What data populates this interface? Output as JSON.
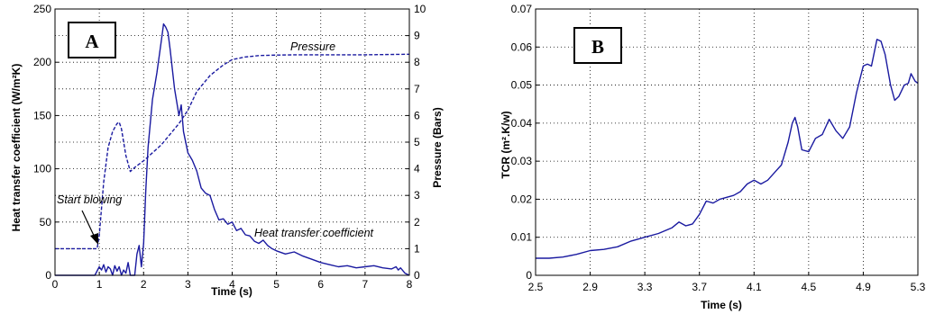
{
  "colors": {
    "series": "#1a1aa0",
    "grid": "#000000",
    "axis": "#000000",
    "background": "#ffffff"
  },
  "chart_data": [
    {
      "id": "A",
      "type": "line",
      "panel_label": "A",
      "xlabel": "Time (s)",
      "ylabel": "Heat transfer coefficient (W/m²K)",
      "ylabel_right": "Pressure (Bars)",
      "xlim": [
        0,
        8
      ],
      "ylim": [
        0,
        250
      ],
      "ylim_right": [
        0,
        10
      ],
      "x_ticks": [
        "0",
        "1",
        "2",
        "3",
        "4",
        "5",
        "6",
        "7",
        "8"
      ],
      "y_ticks": [
        "0",
        "50",
        "100",
        "150",
        "200",
        "250"
      ],
      "y_ticks_right": [
        "0",
        "1",
        "2",
        "3",
        "4",
        "5",
        "6",
        "7",
        "8",
        "9",
        "10"
      ],
      "grid": true,
      "annotations": [
        "Pressure",
        "Heat transfer coefficient",
        "Start blowing"
      ],
      "series": [
        {
          "name": "Pressure",
          "axis": "right",
          "style": "dashed",
          "x": [
            0,
            0.95,
            1.0,
            1.1,
            1.2,
            1.3,
            1.4,
            1.45,
            1.5,
            1.6,
            1.7,
            1.8,
            2.0,
            2.4,
            2.8,
            3.0,
            3.2,
            3.5,
            3.8,
            4.0,
            4.3,
            4.6,
            5.0,
            5.5,
            6.0,
            7.0,
            8.0
          ],
          "y": [
            1.0,
            1.0,
            1.5,
            3.5,
            4.8,
            5.4,
            5.7,
            5.75,
            5.5,
            4.5,
            3.9,
            4.05,
            4.3,
            4.9,
            5.7,
            6.2,
            6.9,
            7.5,
            7.9,
            8.1,
            8.2,
            8.25,
            8.27,
            8.28,
            8.28,
            8.28,
            8.3
          ]
        },
        {
          "name": "Heat transfer coefficient",
          "axis": "left",
          "style": "solid",
          "x": [
            0,
            0.9,
            1.0,
            1.05,
            1.1,
            1.15,
            1.2,
            1.25,
            1.3,
            1.35,
            1.4,
            1.45,
            1.5,
            1.55,
            1.6,
            1.65,
            1.7,
            1.8,
            1.85,
            1.9,
            1.95,
            2.0,
            2.05,
            2.1,
            2.2,
            2.3,
            2.4,
            2.45,
            2.5,
            2.55,
            2.6,
            2.7,
            2.8,
            2.85,
            2.9,
            3.0,
            3.1,
            3.2,
            3.3,
            3.4,
            3.5,
            3.6,
            3.7,
            3.8,
            3.9,
            4.0,
            4.1,
            4.2,
            4.3,
            4.4,
            4.5,
            4.6,
            4.7,
            4.8,
            4.9,
            5.0,
            5.2,
            5.4,
            5.6,
            5.8,
            6.0,
            6.2,
            6.4,
            6.6,
            6.8,
            7.0,
            7.2,
            7.4,
            7.6,
            7.7,
            7.75,
            7.8,
            7.9,
            8.0
          ],
          "y": [
            0,
            0,
            8,
            5,
            10,
            3,
            8,
            6,
            0,
            9,
            4,
            8,
            0,
            5,
            2,
            12,
            0,
            0,
            20,
            28,
            8,
            30,
            80,
            120,
            165,
            190,
            220,
            236,
            233,
            228,
            212,
            175,
            150,
            160,
            135,
            115,
            108,
            98,
            82,
            77,
            75,
            62,
            52,
            53,
            48,
            50,
            42,
            44,
            38,
            37,
            32,
            30,
            33,
            28,
            25,
            23,
            20,
            22,
            18,
            15,
            12,
            10,
            8,
            9,
            7,
            8,
            9,
            7,
            6,
            8,
            5,
            7,
            2,
            0
          ]
        }
      ]
    },
    {
      "id": "B",
      "type": "line",
      "panel_label": "B",
      "xlabel": "Time (s)",
      "ylabel": "TCR (m².K/w)",
      "xlim": [
        2.5,
        5.3
      ],
      "ylim": [
        0,
        0.07
      ],
      "x_ticks": [
        "2.5",
        "2.9",
        "3.3",
        "3.7",
        "4.1",
        "4.5",
        "4.9",
        "5.3"
      ],
      "y_ticks": [
        "0",
        "0.01",
        "0.02",
        "0.03",
        "0.04",
        "0.05",
        "0.06",
        "0.07"
      ],
      "grid": true,
      "series": [
        {
          "style": "solid",
          "x": [
            2.5,
            2.6,
            2.7,
            2.8,
            2.9,
            3.0,
            3.1,
            3.2,
            3.3,
            3.4,
            3.5,
            3.55,
            3.6,
            3.65,
            3.7,
            3.75,
            3.8,
            3.85,
            3.9,
            3.95,
            4.0,
            4.05,
            4.1,
            4.15,
            4.2,
            4.25,
            4.3,
            4.35,
            4.38,
            4.4,
            4.42,
            4.45,
            4.5,
            4.55,
            4.6,
            4.65,
            4.7,
            4.75,
            4.8,
            4.85,
            4.9,
            4.93,
            4.96,
            5.0,
            5.03,
            5.06,
            5.1,
            5.13,
            5.16,
            5.2,
            5.23,
            5.25,
            5.28,
            5.3
          ],
          "y": [
            0.0045,
            0.0045,
            0.0048,
            0.0055,
            0.0065,
            0.0068,
            0.0075,
            0.009,
            0.01,
            0.011,
            0.0125,
            0.014,
            0.013,
            0.0135,
            0.016,
            0.0195,
            0.019,
            0.02,
            0.0205,
            0.021,
            0.022,
            0.024,
            0.025,
            0.024,
            0.025,
            0.027,
            0.029,
            0.035,
            0.04,
            0.0415,
            0.039,
            0.033,
            0.0325,
            0.036,
            0.037,
            0.041,
            0.038,
            0.036,
            0.039,
            0.048,
            0.055,
            0.0555,
            0.055,
            0.062,
            0.0615,
            0.058,
            0.05,
            0.046,
            0.047,
            0.05,
            0.0505,
            0.053,
            0.051,
            0.0505
          ]
        }
      ]
    }
  ]
}
